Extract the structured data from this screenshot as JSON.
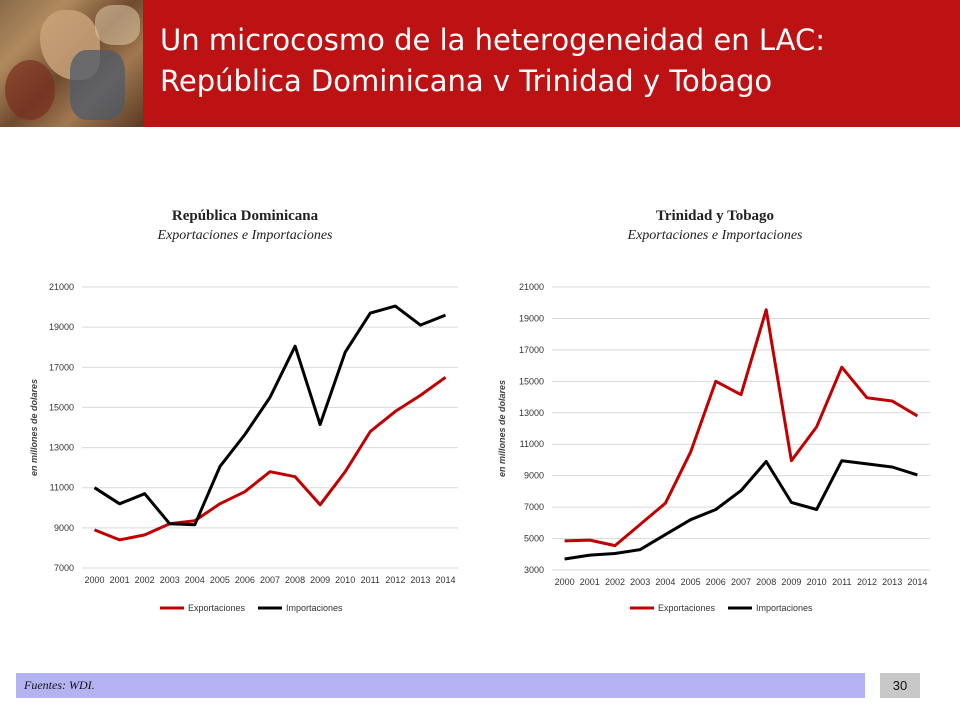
{
  "header": {
    "title_line1": "Un microcosmo de la heterogeneidad en LAC:",
    "title_line2": "República Dominicana v Trinidad y Tobago"
  },
  "footer": {
    "source": "Fuentes: WDI.",
    "page_number": "30"
  },
  "colors": {
    "header": "#bd1213",
    "exports": "#c00000",
    "imports": "#000000",
    "footer": "#b3b3f2"
  },
  "chart_data": [
    {
      "type": "line",
      "title": "República Dominicana",
      "subtitle": "Exportaciones e Importaciones",
      "ylabel": "en millones de dolares",
      "ylim": [
        7000,
        21000
      ],
      "yticks": [
        7000,
        9000,
        11000,
        13000,
        15000,
        17000,
        19000,
        21000
      ],
      "x": [
        "2000",
        "2001",
        "2002",
        "2003",
        "2004",
        "2005",
        "2006",
        "2007",
        "2008",
        "2009",
        "2010",
        "2011",
        "2012",
        "2013",
        "2014"
      ],
      "series": [
        {
          "name": "Exportaciones",
          "color": "#c00000",
          "values": [
            8900,
            8400,
            8650,
            9200,
            9350,
            10200,
            10800,
            11800,
            11550,
            10150,
            11800,
            13800,
            14800,
            15600,
            16500
          ]
        },
        {
          "name": "Importaciones",
          "color": "#000000",
          "values": [
            11000,
            10200,
            10700,
            9200,
            9150,
            12050,
            13650,
            15500,
            18050,
            14150,
            17750,
            19700,
            20050,
            19100,
            19600
          ]
        }
      ],
      "legend": "bottom"
    },
    {
      "type": "line",
      "title": "Trinidad y Tobago",
      "subtitle": "Exportaciones e Importaciones",
      "ylabel": "en millones de dolares",
      "ylim": [
        3000,
        21000
      ],
      "yticks": [
        3000,
        5000,
        7000,
        9000,
        11000,
        13000,
        15000,
        17000,
        19000,
        21000
      ],
      "x": [
        "2000",
        "2001",
        "2002",
        "2003",
        "2004",
        "2005",
        "2006",
        "2007",
        "2008",
        "2009",
        "2010",
        "2011",
        "2012",
        "2013",
        "2014"
      ],
      "series": [
        {
          "name": "Exportaciones",
          "color": "#c00000",
          "values": [
            4850,
            4900,
            4550,
            5900,
            7250,
            10500,
            15000,
            14150,
            19550,
            9950,
            12100,
            15900,
            13950,
            13750,
            12800
          ]
        },
        {
          "name": "Importaciones",
          "color": "#000000",
          "values": [
            3700,
            3950,
            4050,
            4300,
            5250,
            6200,
            6850,
            8050,
            9900,
            7300,
            6850,
            9950,
            9750,
            9550,
            9050
          ]
        }
      ],
      "legend": "bottom"
    }
  ]
}
